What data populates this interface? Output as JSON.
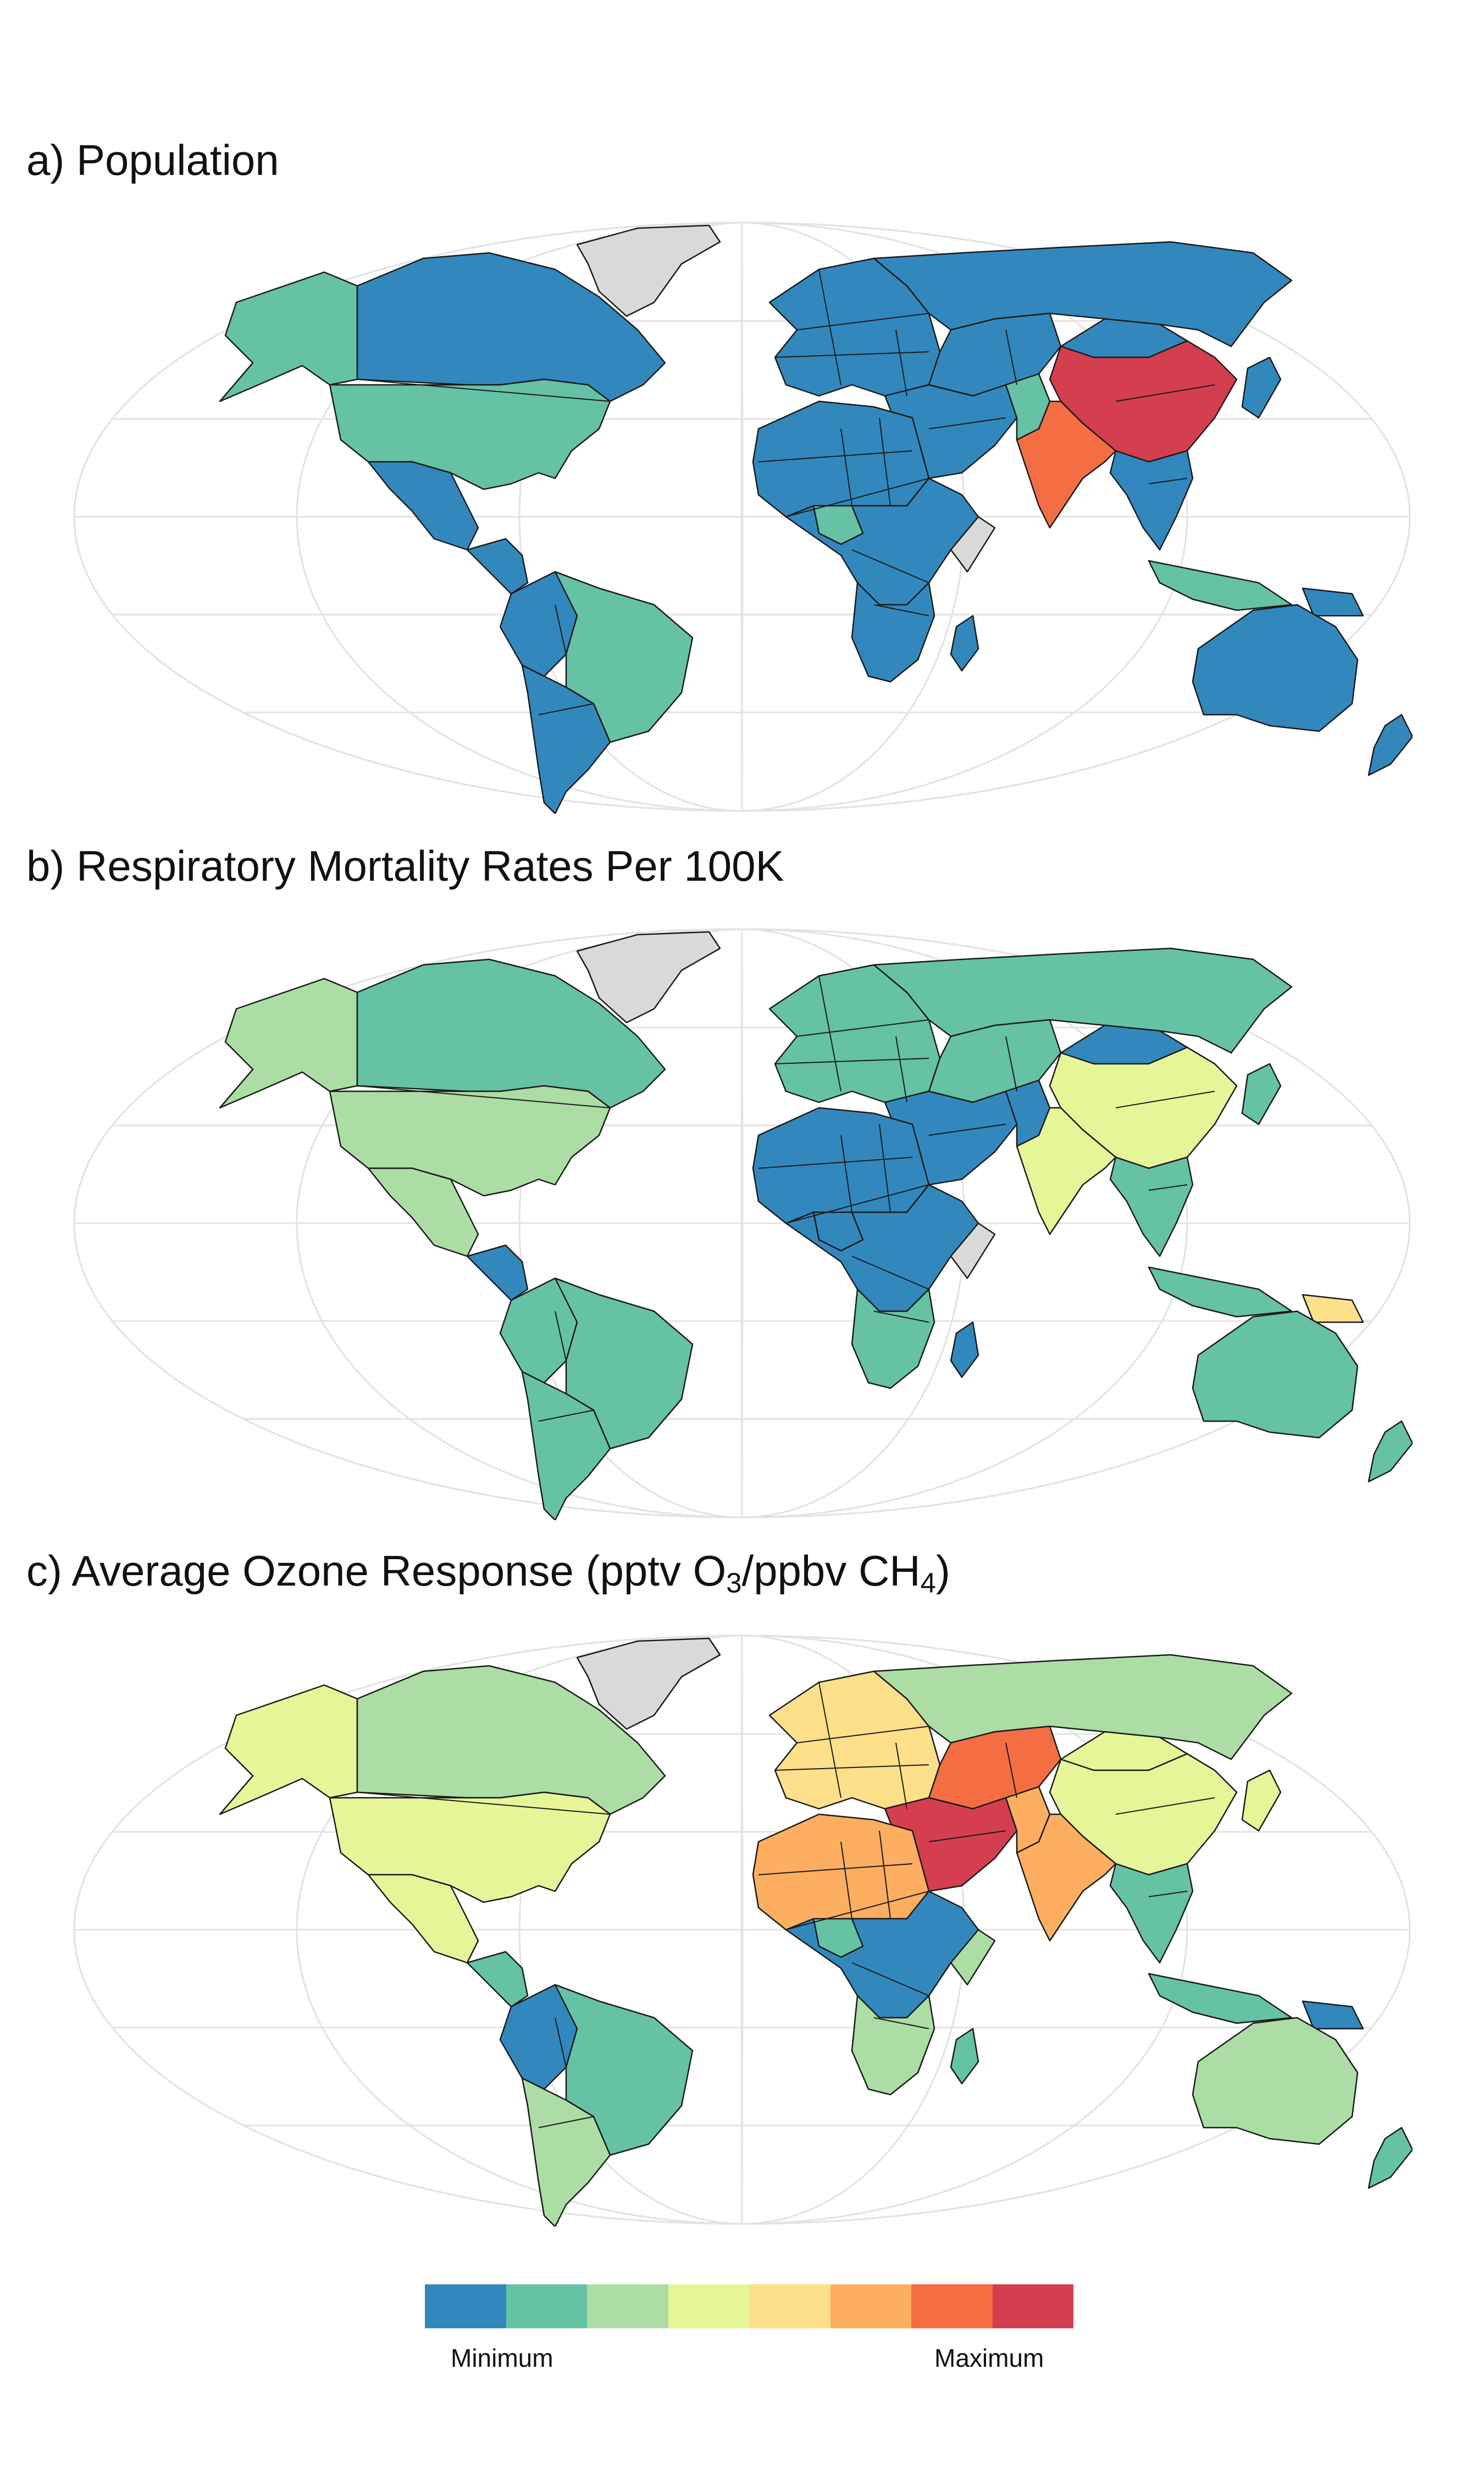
{
  "panels": [
    {
      "id": "a",
      "title": "a) Population",
      "colors": {
        "canada": "#3288bd",
        "alaska": "#66c2a5",
        "usa": "#66c2a5",
        "mexico": "#3288bd",
        "central_america": "#3288bd",
        "greenland": "#d9d9d9",
        "northern_south_america": "#3288bd",
        "brazil": "#66c2a5",
        "southern_south_america": "#3288bd",
        "europe": "#3288bd",
        "russia": "#3288bd",
        "middle_east": "#3288bd",
        "central_asia": "#3288bd",
        "china": "#d53e4f",
        "mongolia": "#3288bd",
        "india": "#f46d43",
        "pakistan": "#66c2a5",
        "southeast_asia": "#3288bd",
        "japan": "#3288bd",
        "indonesia": "#66c2a5",
        "north_africa": "#3288bd",
        "nigeria": "#66c2a5",
        "central_africa": "#3288bd",
        "southern_africa": "#3288bd",
        "somalia": "#d9d9d9",
        "madagascar": "#3288bd",
        "australia": "#3288bd",
        "new_zealand": "#3288bd",
        "png": "#3288bd"
      }
    },
    {
      "id": "b",
      "title": "b) Respiratory Mortality Rates Per 100K",
      "colors": {
        "canada": "#66c2a5",
        "alaska": "#abdda4",
        "usa": "#abdda4",
        "mexico": "#abdda4",
        "central_america": "#3288bd",
        "greenland": "#d9d9d9",
        "northern_south_america": "#66c2a5",
        "brazil": "#66c2a5",
        "southern_south_america": "#66c2a5",
        "europe": "#66c2a5",
        "russia": "#66c2a5",
        "middle_east": "#3288bd",
        "central_asia": "#66c2a5",
        "china": "#e6f598",
        "mongolia": "#3288bd",
        "india": "#e6f598",
        "pakistan": "#3288bd",
        "southeast_asia": "#66c2a5",
        "japan": "#66c2a5",
        "indonesia": "#66c2a5",
        "north_africa": "#3288bd",
        "nigeria": "#3288bd",
        "central_africa": "#3288bd",
        "southern_africa": "#66c2a5",
        "somalia": "#d9d9d9",
        "madagascar": "#3288bd",
        "australia": "#66c2a5",
        "new_zealand": "#66c2a5",
        "png": "#fee08b"
      }
    },
    {
      "id": "c",
      "title_main": "c) Average Ozone Response (pptv O",
      "title_sub1": "3",
      "title_mid": "/ppbv CH",
      "title_sub2": "4",
      "title_end": ")",
      "colors": {
        "canada": "#abdda4",
        "alaska": "#e6f598",
        "usa": "#e6f598",
        "mexico": "#e6f598",
        "central_america": "#66c2a5",
        "greenland": "#d9d9d9",
        "northern_south_america": "#3288bd",
        "brazil": "#66c2a5",
        "southern_south_america": "#abdda4",
        "europe": "#fee08b",
        "russia": "#abdda4",
        "middle_east": "#d53e4f",
        "central_asia": "#f46d43",
        "china": "#e6f598",
        "mongolia": "#e6f598",
        "india": "#fdae61",
        "pakistan": "#fdae61",
        "southeast_asia": "#66c2a5",
        "japan": "#e6f598",
        "indonesia": "#66c2a5",
        "north_africa": "#fdae61",
        "nigeria": "#66c2a5",
        "central_africa": "#3288bd",
        "southern_africa": "#abdda4",
        "somalia": "#abdda4",
        "madagascar": "#66c2a5",
        "australia": "#abdda4",
        "new_zealand": "#66c2a5",
        "png": "#3288bd"
      }
    }
  ],
  "legend": {
    "colors": [
      "#3288bd",
      "#66c2a5",
      "#abdda4",
      "#e6f598",
      "#fee08b",
      "#fdae61",
      "#f46d43",
      "#d53e4f"
    ],
    "min_label": "Minimum",
    "max_label": "Maximum"
  }
}
